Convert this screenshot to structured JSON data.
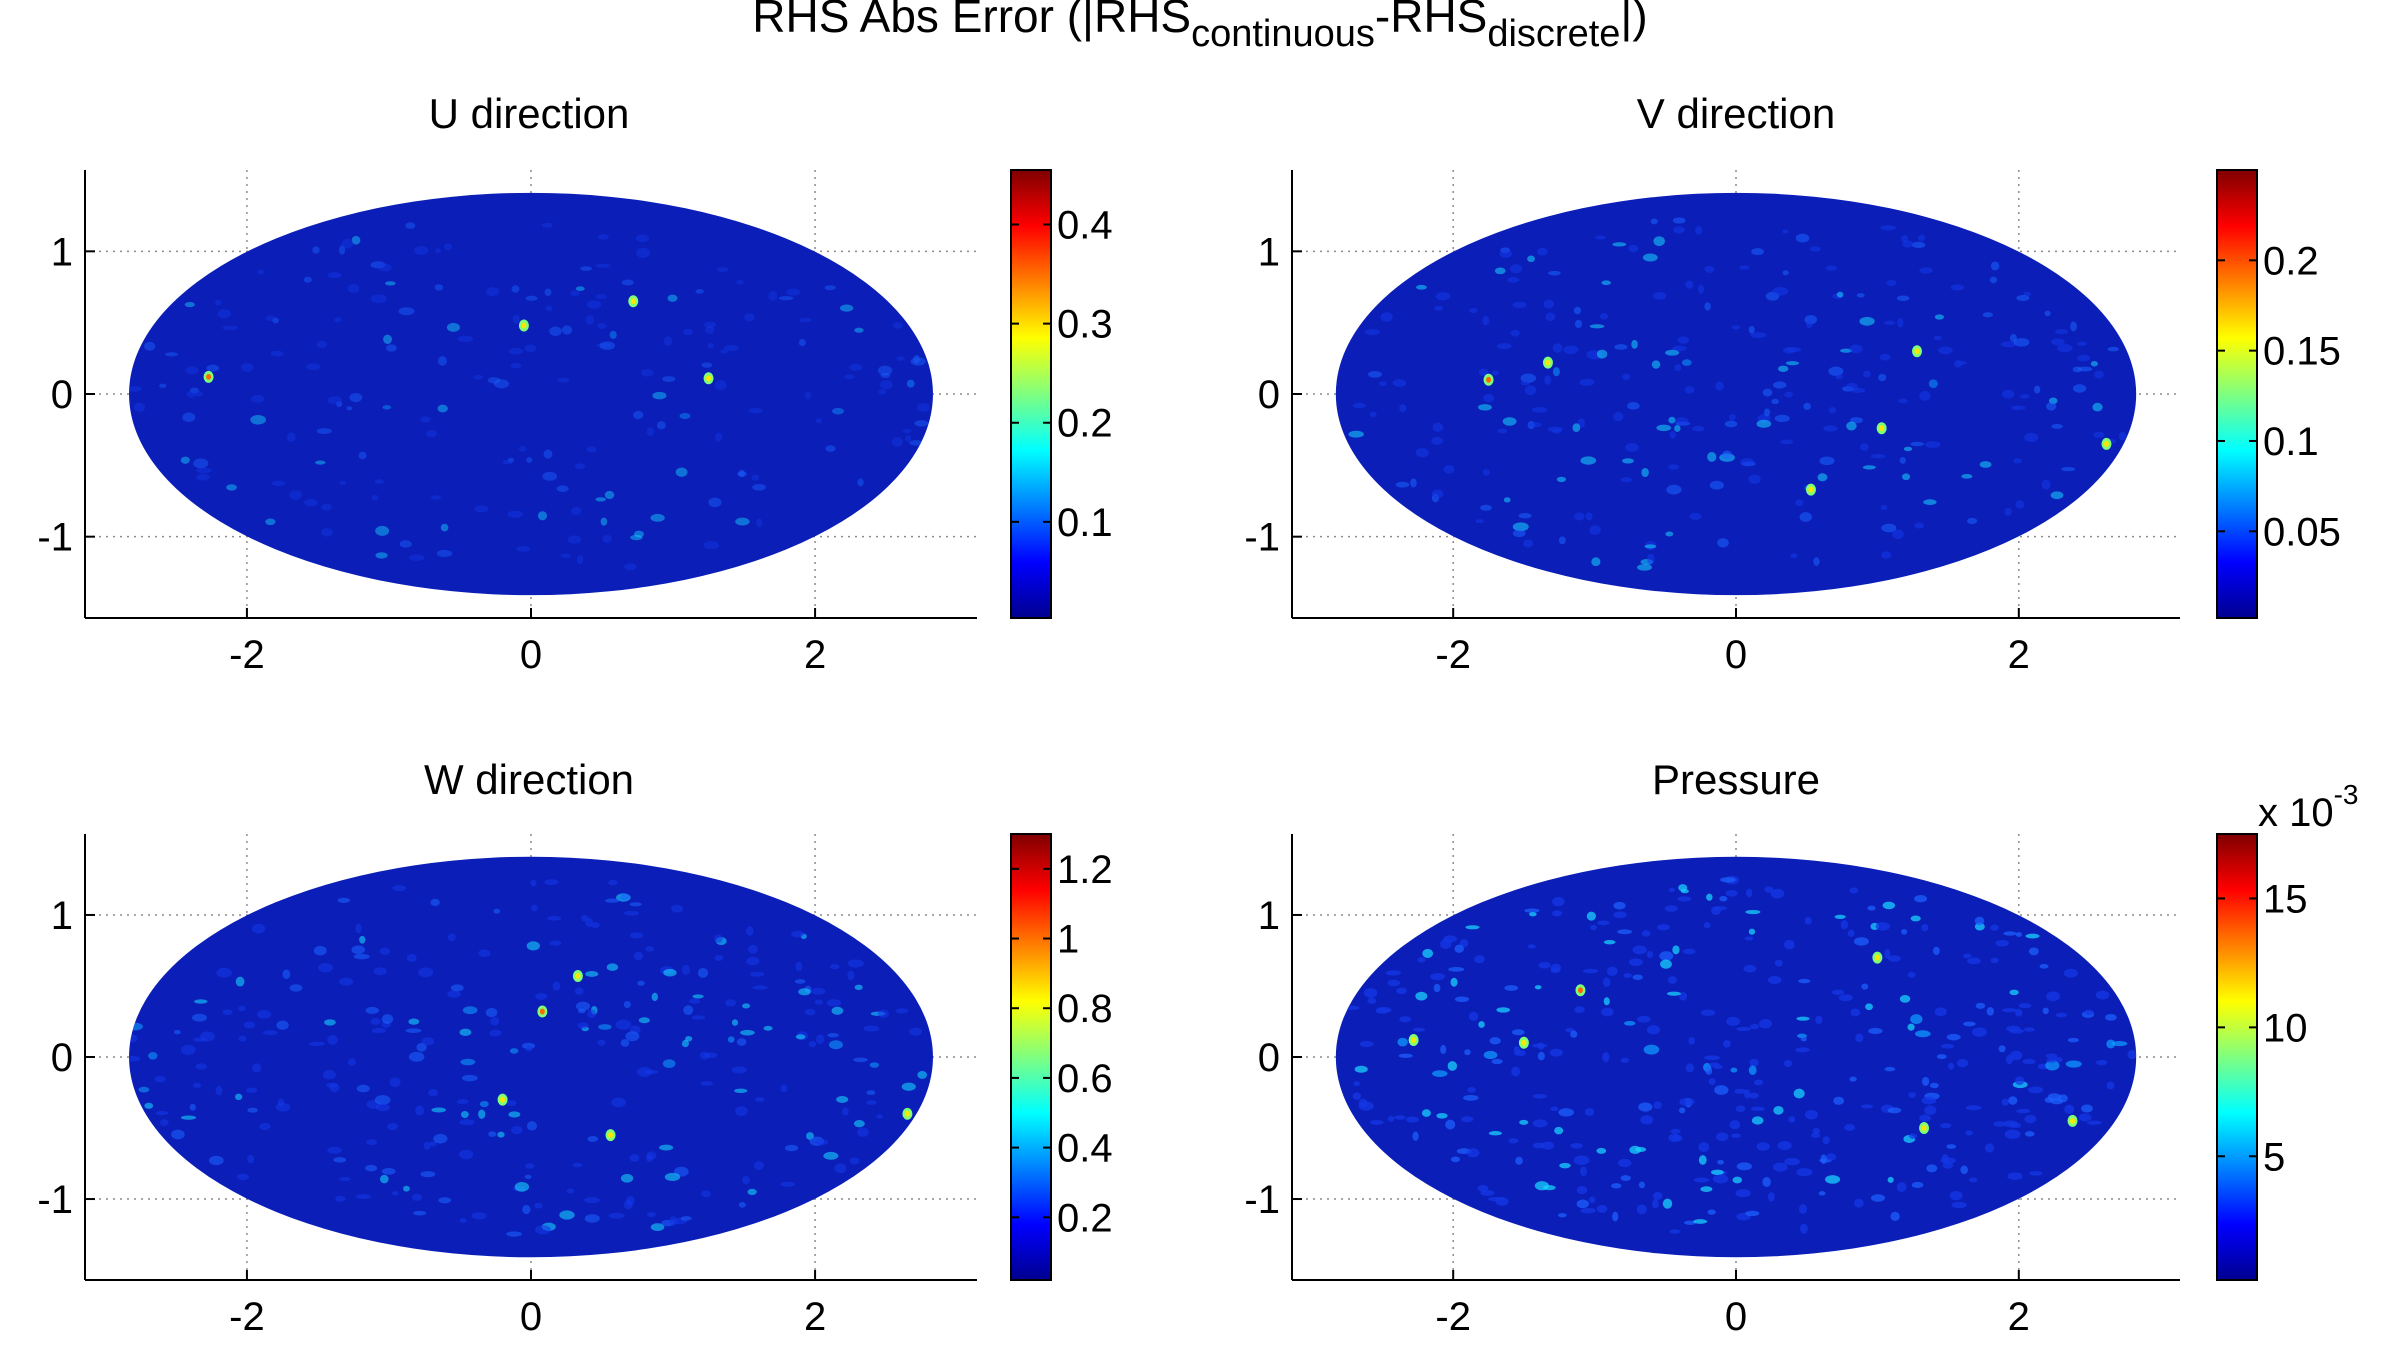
{
  "figure": {
    "title_main": "RHS Abs Error (|RHS",
    "title_sub1": "continuous",
    "title_mid": "-RHS",
    "title_sub2": "discrete",
    "title_end": "|)"
  },
  "colormap": "jet",
  "colors": {
    "background": "#ffffff",
    "axis": "#000000",
    "grid": "#8c8c8c",
    "field_base": "#0b1fb8"
  },
  "chart_data": [
    {
      "type": "heatmap",
      "title": "U direction",
      "xticks": [
        "-2",
        "0",
        "2"
      ],
      "yticks": [
        "1",
        "0",
        "-1"
      ],
      "xlim": [
        -3.14,
        3.14
      ],
      "ylim": [
        -1.57,
        1.57
      ],
      "xtick_values": [
        -2,
        0,
        2
      ],
      "ytick_values": [
        1,
        0,
        -1
      ],
      "projection_extent": [
        2.83,
        1.41
      ],
      "grid": true,
      "colorbar": {
        "range": [
          0.003,
          0.455
        ],
        "ticks": [
          0.1,
          0.2,
          0.3,
          0.4
        ],
        "ticklabels": [
          "0.1",
          "0.2",
          "0.3",
          "0.4"
        ],
        "exponent": ""
      },
      "field_intensity": 0.12,
      "hotspots": [
        [
          -2.27,
          0.12
        ],
        [
          1.25,
          0.11
        ],
        [
          -0.05,
          0.48
        ],
        [
          0.72,
          0.65
        ]
      ]
    },
    {
      "type": "heatmap",
      "title": "V direction",
      "xticks": [
        "-2",
        "0",
        "2"
      ],
      "yticks": [
        "1",
        "0",
        "-1"
      ],
      "xlim": [
        -3.14,
        3.14
      ],
      "ylim": [
        -1.57,
        1.57
      ],
      "xtick_values": [
        -2,
        0,
        2
      ],
      "ytick_values": [
        1,
        0,
        -1
      ],
      "projection_extent": [
        2.83,
        1.41
      ],
      "grid": true,
      "colorbar": {
        "range": [
          0.002,
          0.25
        ],
        "ticks": [
          0.05,
          0.1,
          0.15,
          0.2
        ],
        "ticklabels": [
          "0.05",
          "0.1",
          "0.15",
          "0.2"
        ],
        "exponent": ""
      },
      "field_intensity": 0.22,
      "hotspots": [
        [
          -1.75,
          0.1
        ],
        [
          -1.33,
          0.22
        ],
        [
          1.28,
          0.3
        ],
        [
          1.03,
          -0.24
        ],
        [
          0.53,
          -0.67
        ],
        [
          2.62,
          -0.35
        ]
      ]
    },
    {
      "type": "heatmap",
      "title": "W direction",
      "xticks": [
        "-2",
        "0",
        "2"
      ],
      "yticks": [
        "1",
        "0",
        "-1"
      ],
      "xlim": [
        -3.14,
        3.14
      ],
      "ylim": [
        -1.57,
        1.57
      ],
      "xtick_values": [
        -2,
        0,
        2
      ],
      "ytick_values": [
        1,
        0,
        -1
      ],
      "projection_extent": [
        2.83,
        1.41
      ],
      "grid": true,
      "colorbar": {
        "range": [
          0.02,
          1.3
        ],
        "ticks": [
          0.2,
          0.4,
          0.6,
          0.8,
          1,
          1.2
        ],
        "ticklabels": [
          "0.2",
          "0.4",
          "0.6",
          "0.8",
          "1",
          "1.2"
        ],
        "exponent": ""
      },
      "field_intensity": 0.26,
      "hotspots": [
        [
          0.08,
          0.32
        ],
        [
          0.56,
          -0.55
        ],
        [
          0.33,
          0.57
        ],
        [
          -0.2,
          -0.3
        ],
        [
          2.65,
          -0.4
        ]
      ]
    },
    {
      "type": "heatmap",
      "title": "Pressure",
      "xticks": [
        "-2",
        "0",
        "2"
      ],
      "yticks": [
        "1",
        "0",
        "-1"
      ],
      "xlim": [
        -3.14,
        3.14
      ],
      "ylim": [
        -1.57,
        1.57
      ],
      "xtick_values": [
        -2,
        0,
        2
      ],
      "ytick_values": [
        1,
        0,
        -1
      ],
      "projection_extent": [
        2.83,
        1.41
      ],
      "grid": true,
      "colorbar": {
        "range": [
          0.2,
          17.5
        ],
        "ticks": [
          5,
          10,
          15
        ],
        "ticklabels": [
          "5",
          "10",
          "15"
        ],
        "exponent_base": "x 10",
        "exponent": "-3"
      },
      "field_intensity": 0.42,
      "hotspots": [
        [
          -1.1,
          0.47
        ],
        [
          -2.28,
          0.12
        ],
        [
          -1.5,
          0.1
        ],
        [
          1.33,
          -0.5
        ],
        [
          1.0,
          0.7
        ],
        [
          2.38,
          -0.45
        ]
      ]
    }
  ]
}
